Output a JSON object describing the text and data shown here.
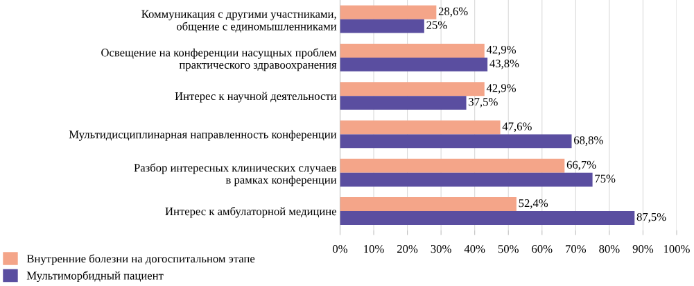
{
  "chart_data": {
    "type": "bar",
    "orientation": "horizontal",
    "categories": [
      "Коммуникация с другими участниками,\nобщение с единомышленниками",
      "Освещение на конференции насущных проблем\nпрактического здравоохранения",
      "Интерес к научной деятельности",
      "Мультидисциплинарная направленность конференции",
      "Разбор интересных клинических случаев\nв рамках конференции",
      "Интерес к амбулаторной медицине"
    ],
    "series": [
      {
        "name": "Внутренние болезни на догоспитальном этапе",
        "color": "#f4a589",
        "values": [
          28.6,
          42.9,
          42.9,
          47.6,
          66.7,
          52.4
        ],
        "value_labels": [
          "28,6%",
          "42,9%",
          "42,9%",
          "47,6%",
          "66,7%",
          "52,4%"
        ]
      },
      {
        "name": "Мультиморбидный пациент",
        "color": "#5a4ea0",
        "values": [
          25,
          43.8,
          37.5,
          68.8,
          75,
          87.5
        ],
        "value_labels": [
          "25%",
          "43,8%",
          "37,5%",
          "68,8%",
          "75%",
          "87,5%"
        ]
      }
    ],
    "xlim": [
      0,
      100
    ],
    "xticks": [
      {
        "value": 0,
        "label": "0%"
      },
      {
        "value": 10,
        "label": "10%"
      },
      {
        "value": 20,
        "label": "20%"
      },
      {
        "value": 30,
        "label": "30%"
      },
      {
        "value": 40,
        "label": "40%"
      },
      {
        "value": 50,
        "label": "50%"
      },
      {
        "value": 60,
        "label": "60%"
      },
      {
        "value": 70,
        "label": "70%"
      },
      {
        "value": 80,
        "label": "80%"
      },
      {
        "value": 90,
        "label": "90%"
      },
      {
        "value": 100,
        "label": "100%"
      }
    ],
    "grid": "x",
    "legend": "bottom left"
  }
}
